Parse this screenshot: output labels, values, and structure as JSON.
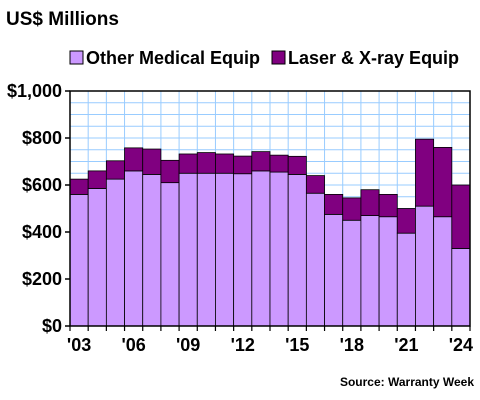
{
  "chart_data": {
    "type": "bar",
    "stacked": true,
    "title": "US$ Millions",
    "source": "Source: Warranty Week",
    "categories": [
      "2003",
      "2004",
      "2005",
      "2006",
      "2007",
      "2008",
      "2009",
      "2010",
      "2011",
      "2012",
      "2013",
      "2014",
      "2015",
      "2016",
      "2017",
      "2018",
      "2019",
      "2020",
      "2021",
      "2022",
      "2023",
      "2024"
    ],
    "x_tick_labels": [
      {
        "category": "2003",
        "label": "'03"
      },
      {
        "category": "2006",
        "label": "'06"
      },
      {
        "category": "2009",
        "label": "'09"
      },
      {
        "category": "2012",
        "label": "'12"
      },
      {
        "category": "2015",
        "label": "'15"
      },
      {
        "category": "2018",
        "label": "'18"
      },
      {
        "category": "2021",
        "label": "'21"
      },
      {
        "category": "2024",
        "label": "'24"
      }
    ],
    "series": [
      {
        "name": "Other Medical Equip",
        "color": "#cc99ff",
        "values": [
          560,
          585,
          625,
          660,
          645,
          610,
          650,
          650,
          650,
          648,
          660,
          655,
          645,
          565,
          475,
          450,
          470,
          465,
          395,
          510,
          465,
          330
        ]
      },
      {
        "name": "Laser & X-ray Equip",
        "color": "#800080",
        "values": [
          65,
          75,
          78,
          98,
          108,
          95,
          82,
          88,
          82,
          75,
          82,
          72,
          77,
          75,
          85,
          95,
          110,
          95,
          105,
          285,
          295,
          270
        ]
      }
    ],
    "ylim": [
      0,
      1000
    ],
    "y_ticks": [
      0,
      200,
      400,
      600,
      800,
      1000
    ],
    "y_tick_labels": [
      "$0",
      "$200",
      "$400",
      "$600",
      "$800",
      "$1,000"
    ],
    "xlabel": "",
    "ylabel": "",
    "grid": true,
    "grid_color": "#99ccff",
    "plot_background": "#ffffff",
    "legend_position": "top"
  }
}
